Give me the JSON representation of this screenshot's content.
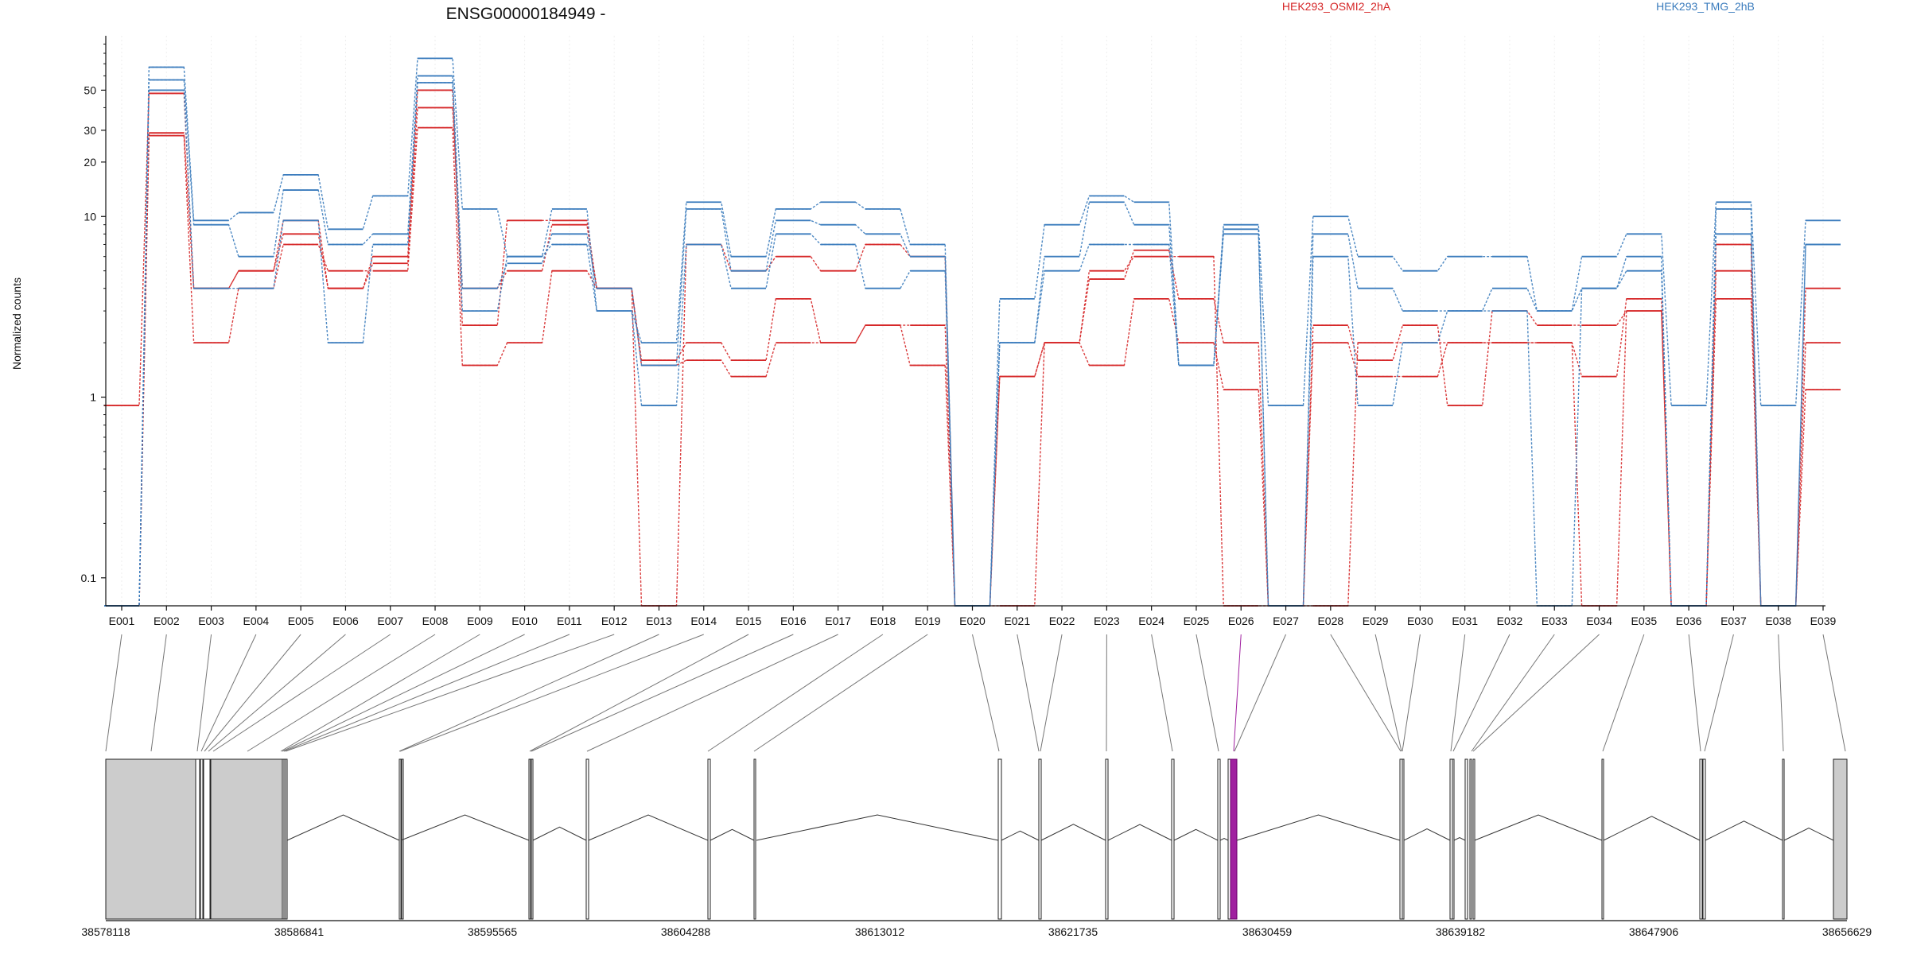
{
  "chart_data": {
    "type": "line",
    "title": "ENSG00000184949 -",
    "ylabel": "Normalized counts",
    "y_scale": "log",
    "ylim": [
      0.07,
      100
    ],
    "y_ticks": [
      0.1,
      1,
      10,
      20,
      30,
      50
    ],
    "y_tick_labels": [
      "0.1",
      "1",
      "10",
      "20",
      "30",
      "50"
    ],
    "legend_placement": "top",
    "exons": [
      "E001",
      "E002",
      "E003",
      "E004",
      "E005",
      "E006",
      "E007",
      "E008",
      "E009",
      "E010",
      "E011",
      "E012",
      "E013",
      "E014",
      "E015",
      "E016",
      "E017",
      "E018",
      "E019",
      "E020",
      "E021",
      "E022",
      "E023",
      "E024",
      "E025",
      "E026",
      "E027",
      "E028",
      "E029",
      "E030",
      "E031",
      "E032",
      "E033",
      "E034",
      "E035",
      "E036",
      "E037",
      "E038",
      "E039"
    ],
    "series": [
      {
        "name": "HEK293_OSMI2_2hA",
        "color": "#d62728",
        "values": [
          0.9,
          48,
          4,
          5,
          8,
          4,
          6,
          50,
          2.5,
          9.5,
          9.5,
          4,
          0.07,
          7,
          5,
          6,
          5,
          7,
          6,
          0.07,
          0.07,
          2,
          5,
          6,
          6,
          0.07,
          0.07,
          0.07,
          2,
          2,
          2,
          2,
          2,
          0.07,
          3,
          0.07,
          7,
          0.07,
          1.1
        ]
      },
      {
        "name": "HEK293_OSMI2_2hA",
        "color": "#d62728",
        "values": [
          0.07,
          29,
          4,
          5,
          9.5,
          4,
          5.5,
          40,
          4,
          5,
          9,
          4,
          1.5,
          1.6,
          1.3,
          2,
          2,
          2.5,
          1.5,
          0.07,
          1.3,
          2,
          4.5,
          6.5,
          3.5,
          2,
          0.07,
          2.5,
          1.6,
          2.5,
          0.9,
          3,
          2.5,
          2.5,
          3,
          0.07,
          5,
          0.07,
          4
        ]
      },
      {
        "name": "HEK293_OSMI2_2hA",
        "color": "#d62728",
        "values": [
          0.07,
          28,
          2,
          4,
          7,
          5,
          5,
          31,
          1.5,
          2,
          5,
          4,
          1.6,
          2,
          1.6,
          3.5,
          2,
          2.5,
          2.5,
          0.07,
          1.3,
          2,
          1.5,
          3.5,
          2,
          1.1,
          0.07,
          2,
          1.3,
          1.3,
          2,
          2,
          2,
          1.3,
          3.5,
          0.07,
          3.5,
          0.07,
          2
        ]
      },
      {
        "name": "HEK293_TMG_2hB",
        "color": "#3b7cbd",
        "values": [
          0.07,
          67,
          9.5,
          10.5,
          17,
          8.5,
          13,
          75,
          11,
          6,
          11,
          3,
          2,
          12,
          6,
          11,
          12,
          11,
          7,
          0.07,
          3.5,
          9,
          13,
          12,
          1.5,
          9,
          0.9,
          10,
          6,
          5,
          6,
          6,
          3,
          6,
          8,
          0.9,
          12,
          0.9,
          9.5
        ]
      },
      {
        "name": "HEK293_TMG_2hB",
        "color": "#3b7cbd",
        "values": [
          0.07,
          57,
          9,
          6,
          14,
          7,
          8,
          60,
          4,
          5.5,
          8,
          4,
          1.5,
          11,
          5,
          9.5,
          9,
          8,
          6,
          0.07,
          2,
          6,
          12,
          9,
          1.5,
          8.5,
          0.07,
          8,
          4,
          3,
          3,
          4,
          3,
          4,
          6,
          0.07,
          11,
          0.07,
          7
        ]
      },
      {
        "name": "HEK293_TMG_2hB",
        "color": "#3b7cbd",
        "values": [
          0.07,
          50,
          4,
          4,
          9.5,
          2,
          7,
          55,
          3,
          6,
          7,
          3,
          0.9,
          7,
          4,
          8,
          7,
          4,
          5,
          0.07,
          2,
          5,
          7,
          7,
          1.5,
          8,
          0.07,
          6,
          0.9,
          2,
          3,
          3,
          0.07,
          4,
          5,
          0.07,
          8,
          0.07,
          7
        ]
      }
    ],
    "genomic_axis": {
      "tick_labels": [
        "38578118",
        "38586841",
        "38595565",
        "38604288",
        "38613012",
        "38621735",
        "38630459",
        "38639182",
        "38647906",
        "38656629"
      ]
    }
  }
}
